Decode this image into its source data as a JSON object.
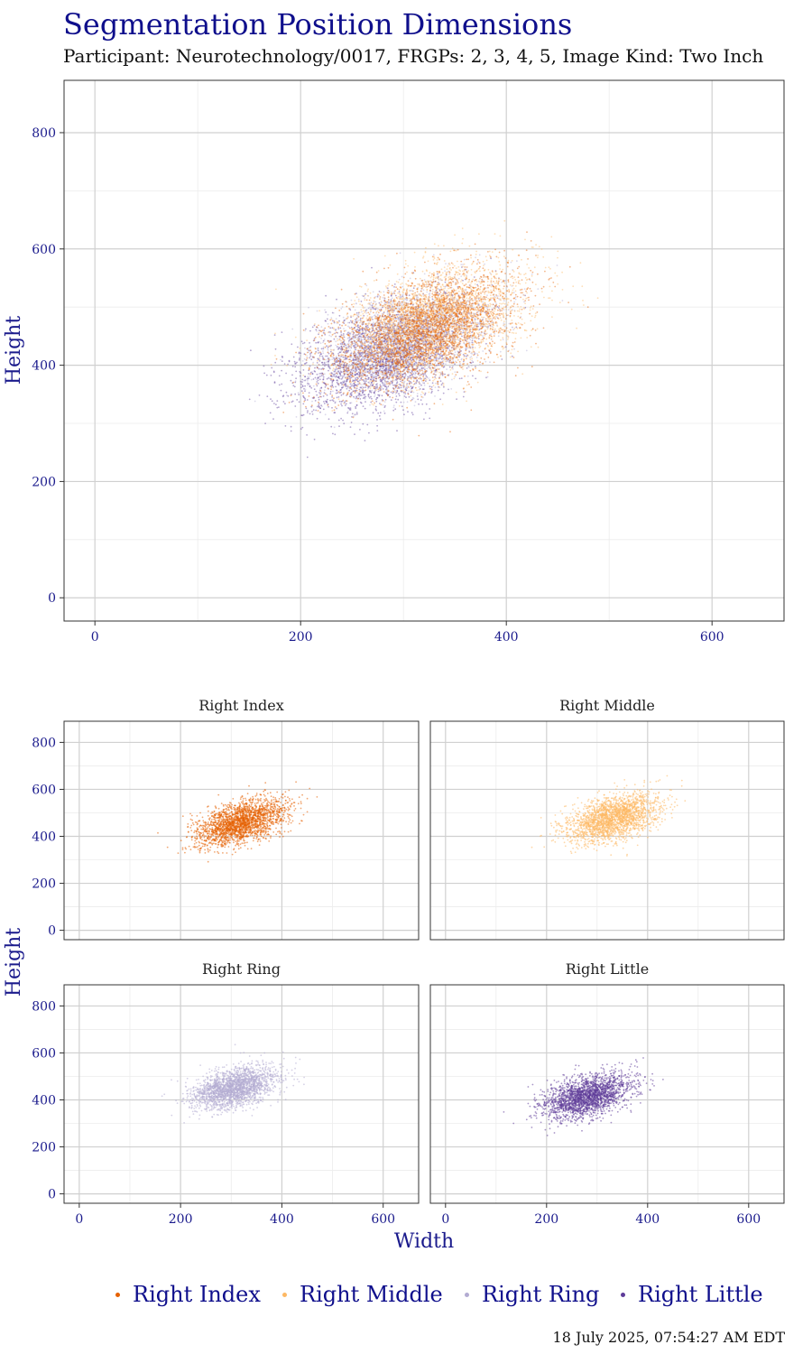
{
  "title": "Segmentation Position Dimensions",
  "subtitle": "Participant: Neurotechnology/0017, FRGPs: 2, 3, 4, 5, Image Kind: Two Inch",
  "timestamp": "18 July 2025, 07:54:27 AM EDT",
  "colors": {
    "Right Index": "#e66101",
    "Right Middle": "#fdb863",
    "Right Ring": "#b2abd2",
    "Right Little": "#5e3c99",
    "axis_text": "#1a1a8c",
    "title": "#0f0f8c"
  },
  "chart_data": [
    {
      "type": "scatter",
      "title": "",
      "xlabel": "",
      "ylabel": "Height",
      "xlim": [
        -30,
        670
      ],
      "ylim": [
        -40,
        890
      ],
      "xticks": [
        0,
        200,
        400,
        600
      ],
      "yticks": [
        0,
        200,
        400,
        600,
        800
      ],
      "grid": true,
      "series": [
        {
          "name": "Right Index",
          "cx": 320,
          "cy": 460,
          "sx": 45,
          "sy": 50,
          "rho": 0.5
        },
        {
          "name": "Right Middle",
          "cx": 330,
          "cy": 475,
          "sx": 45,
          "sy": 50,
          "rho": 0.45
        },
        {
          "name": "Right Ring",
          "cx": 305,
          "cy": 450,
          "sx": 42,
          "sy": 45,
          "rho": 0.45
        },
        {
          "name": "Right Little",
          "cx": 280,
          "cy": 415,
          "sx": 42,
          "sy": 48,
          "rho": 0.45
        }
      ]
    },
    {
      "type": "scatter",
      "facets": [
        "Right Index",
        "Right Middle",
        "Right Ring",
        "Right Little"
      ],
      "xlabel": "Width",
      "ylabel": "Height",
      "xlim": [
        -30,
        670
      ],
      "ylim": [
        -40,
        890
      ],
      "xticks": [
        0,
        200,
        400,
        600
      ],
      "yticks": [
        0,
        200,
        400,
        600,
        800
      ],
      "grid": true
    }
  ],
  "legend": {
    "position": "bottom",
    "items": [
      "Right Index",
      "Right Middle",
      "Right Ring",
      "Right Little"
    ]
  }
}
